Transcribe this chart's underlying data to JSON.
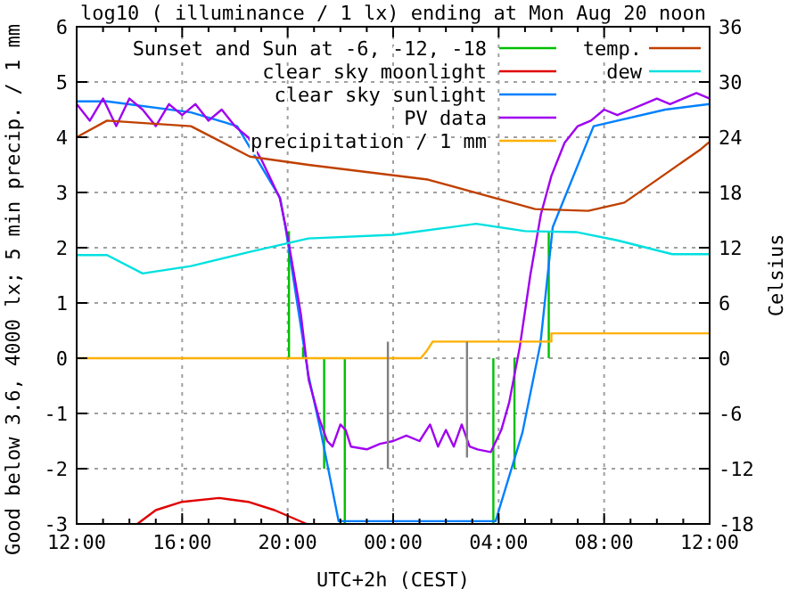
{
  "chart_data": {
    "type": "line",
    "title": "log10 ( illuminance / 1 lx) ending at Mon Aug 20 noon",
    "xlabel": "UTC+2h (CEST)",
    "ylabel": "Good below 3.6, 4000 lx;  5 min precip. / 1 mm",
    "y2label": "Celsius",
    "xlim": [
      "--08-19T12:00",
      "--08-20T12:00"
    ],
    "xticks": [
      {
        "value": "--08-19T12:00",
        "label": "12:00"
      },
      {
        "value": "--08-19T16:00",
        "label": "16:00"
      },
      {
        "value": "--08-19T20:00",
        "label": "20:00"
      },
      {
        "value": "--08-20T00:00",
        "label": "00:00"
      },
      {
        "value": "--08-20T04:00",
        "label": "04:00"
      },
      {
        "value": "--08-20T08:00",
        "label": "08:00"
      },
      {
        "value": "--08-20T12:00",
        "label": "12:00"
      }
    ],
    "ylim": [
      -3,
      6
    ],
    "yticks": [
      -3,
      -2,
      -1,
      0,
      1,
      2,
      3,
      4,
      5,
      6
    ],
    "y2lim": [
      -18,
      36
    ],
    "y2ticks": [
      -18,
      -12,
      -6,
      0,
      6,
      12,
      18,
      24,
      30,
      36
    ],
    "grid": true,
    "legend": "top",
    "line_style": "solid",
    "marker": "none",
    "series": [
      {
        "name": "Sunset and Sun at -6, -12, -18",
        "color": "#00c000",
        "x": [
          "--08-19T20:03",
          "--08-19T20:03",
          null,
          "--08-19T20:35",
          "--08-19T20:35",
          null,
          "--08-19T21:23",
          "--08-19T21:23",
          null,
          "--08-19T22:10",
          "--08-19T22:10",
          null,
          "--08-20T03:48",
          "--08-20T03:48",
          null,
          "--08-20T04:36",
          "--08-20T04:36",
          null,
          "--08-20T05:54",
          "--08-20T05:54"
        ],
        "values": [
          2.3,
          0,
          null,
          0.2,
          0,
          null,
          0,
          -2,
          null,
          0,
          -3,
          null,
          0,
          -3,
          null,
          0,
          -2,
          null,
          2.3,
          0
        ]
      },
      {
        "name": "clear sky moonlight",
        "color": "#e00000",
        "x": [
          "--08-19T14:18",
          "--08-19T15:00",
          "--08-19T16:00",
          "--08-19T17:24",
          "--08-19T18:30",
          "--08-19T19:30",
          "--08-19T20:43"
        ],
        "values": [
          -3,
          -2.75,
          -2.6,
          -2.53,
          -2.6,
          -2.75,
          -3
        ]
      },
      {
        "name": "clear sky sunlight",
        "color": "#0080ff",
        "x": [
          "--08-19T12:00",
          "--08-19T13:09",
          "--08-19T16:20",
          "--08-19T18:05",
          "--08-19T19:43",
          "--08-19T19:55",
          "--08-19T20:47",
          "--08-19T21:16",
          "--08-19T21:56",
          "--08-20T03:53",
          "--08-20T04:54",
          "--08-20T05:35",
          "--08-20T06:03",
          "--08-20T07:36",
          "--08-20T10:19",
          "--08-20T12:00"
        ],
        "values": [
          4.65,
          4.65,
          4.45,
          4.2,
          2.9,
          2.37,
          -0.3,
          -1.35,
          -2.95,
          -2.95,
          -1.35,
          0.26,
          2.37,
          4.2,
          4.5,
          4.6
        ]
      },
      {
        "name": "PV data",
        "color": "#a000f0",
        "x": [
          "--08-19T12:00",
          "--08-19T12:30",
          "--08-19T13:00",
          "--08-19T13:30",
          "--08-19T14:00",
          "--08-19T14:30",
          "--08-19T15:00",
          "--08-19T15:30",
          "--08-19T16:00",
          "--08-19T16:30",
          "--08-19T17:00",
          "--08-19T17:30",
          "--08-19T18:00",
          "--08-19T18:30",
          "--08-19T19:00",
          "--08-19T19:42",
          "--08-19T20:00",
          "--08-19T20:30",
          "--08-19T20:48",
          "--08-19T21:12",
          "--08-19T21:30",
          "--08-19T21:42",
          "--08-19T22:00",
          "--08-19T22:12",
          "--08-19T22:24",
          "--08-19T23:00",
          "--08-19T23:30",
          "--08-20T00:00",
          "--08-20T00:30",
          "--08-20T01:00",
          "--08-20T01:24",
          "--08-20T01:42",
          "--08-20T02:00",
          "--08-20T02:18",
          "--08-20T02:36",
          "--08-20T02:54",
          "--08-20T03:12",
          "--08-20T03:42",
          "--08-20T03:54",
          "--08-20T04:06",
          "--08-20T04:24",
          "--08-20T04:48",
          "--08-20T05:12",
          "--08-20T05:36",
          "--08-20T06:00",
          "--08-20T06:30",
          "--08-20T07:00",
          "--08-20T07:30",
          "--08-20T08:00",
          "--08-20T08:30",
          "--08-20T09:00",
          "--08-20T09:30",
          "--08-20T10:00",
          "--08-20T10:30",
          "--08-20T11:00",
          "--08-20T11:30",
          "--08-20T12:00"
        ],
        "values": [
          4.6,
          4.3,
          4.7,
          4.2,
          4.7,
          4.5,
          4.2,
          4.6,
          4.4,
          4.6,
          4.3,
          4.5,
          4.2,
          4.0,
          3.6,
          2.9,
          2.2,
          0.8,
          -0.4,
          -1.1,
          -1.5,
          -1.6,
          -1.2,
          -1.3,
          -1.6,
          -1.65,
          -1.55,
          -1.5,
          -1.4,
          -1.5,
          -1.2,
          -1.6,
          -1.3,
          -1.6,
          -1.2,
          -1.6,
          -1.65,
          -1.7,
          -1.5,
          -1.3,
          -0.8,
          0.2,
          1.5,
          2.6,
          3.3,
          3.9,
          4.2,
          4.3,
          4.5,
          4.4,
          4.5,
          4.6,
          4.7,
          4.6,
          4.7,
          4.8,
          4.7
        ]
      },
      {
        "name": "precipitation / 1 mm",
        "color": "#ffb000",
        "x": [
          "--08-19T12:00",
          "--08-20T01:03",
          "--08-20T01:18",
          "--08-20T01:30",
          "--08-20T06:00",
          "--08-20T06:00",
          "--08-20T12:00"
        ],
        "values": [
          0,
          0,
          0.15,
          0.3,
          0.3,
          0.45,
          0.45
        ]
      },
      {
        "name": "temp.",
        "color": "#c04000",
        "axis": "y2",
        "x": [
          "--08-19T12:00",
          "--08-19T13:09",
          "--08-19T16:20",
          "--08-19T18:34",
          "--08-19T20:47",
          "--08-20T01:19",
          "--08-20T05:23",
          "--08-20T07:24",
          "--08-20T08:46",
          "--08-20T11:40",
          "--08-20T12:00"
        ],
        "values": [
          24,
          25.8,
          25.2,
          21.9,
          21,
          19.4,
          16.2,
          16,
          16.9,
          22.7,
          23.5
        ]
      },
      {
        "name": "dew",
        "color": "#00e0e0",
        "axis": "y2",
        "x": [
          "--08-19T12:00",
          "--08-19T13:09",
          "--08-19T14:30",
          "--08-19T16:20",
          "--08-19T18:30",
          "--08-19T20:47",
          "--08-20T00:00",
          "--08-20T03:09",
          "--08-20T05:00",
          "--08-20T06:56",
          "--08-20T08:30",
          "--08-20T10:35",
          "--08-20T12:00"
        ],
        "values": [
          11.2,
          11.2,
          9.2,
          10,
          11.5,
          13,
          13.4,
          14.6,
          13.8,
          13.7,
          12.8,
          11.3,
          11.3
        ]
      },
      {
        "color": "#808080",
        "x": [
          "--08-19T23:48",
          "--08-19T23:48",
          null,
          "--08-20T02:48",
          "--08-20T02:48"
        ],
        "values": [
          0.3,
          -2,
          null,
          0.3,
          -1.8
        ]
      }
    ]
  }
}
